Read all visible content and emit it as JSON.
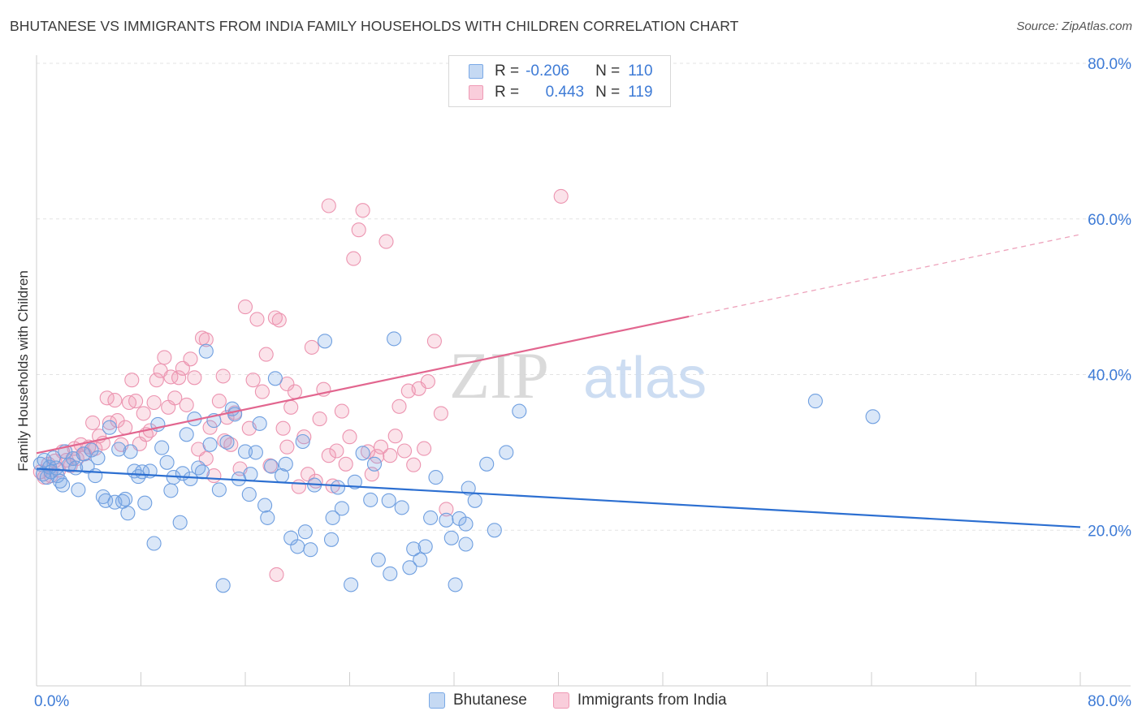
{
  "title": "BHUTANESE VS IMMIGRANTS FROM INDIA FAMILY HOUSEHOLDS WITH CHILDREN CORRELATION CHART",
  "source": "Source: ZipAtlas.com",
  "watermark": {
    "zip": "ZIP",
    "atlas": "atlas"
  },
  "legend": {
    "rows": [
      {
        "r_label": "R =",
        "r_value": "-0.206",
        "n_label": "N =",
        "n_value": "110",
        "color": "#7aa9e6"
      },
      {
        "r_label": "R =",
        "r_value": "0.443",
        "n_label": "N =",
        "n_value": "119",
        "color": "#ef9ab5"
      }
    ]
  },
  "bottom_legend": [
    {
      "label": "Bhutanese",
      "color": "#7aa9e6"
    },
    {
      "label": "Immigrants from India",
      "color": "#ef9ab5"
    }
  ],
  "chart_data": {
    "type": "scatter",
    "title": "BHUTANESE VS IMMIGRANTS FROM INDIA FAMILY HOUSEHOLDS WITH CHILDREN CORRELATION CHART",
    "xlabel": "",
    "ylabel": "Family Households with Children",
    "xlim": [
      0,
      80
    ],
    "ylim": [
      0,
      80
    ],
    "x_tick_labels": [
      {
        "value": 0,
        "label": "0.0%"
      },
      {
        "value": 80,
        "label": "80.0%"
      }
    ],
    "y_tick_labels": [
      {
        "value": 20,
        "label": "20.0%"
      },
      {
        "value": 40,
        "label": "40.0%"
      },
      {
        "value": 60,
        "label": "60.0%"
      },
      {
        "value": 80,
        "label": "80.0%"
      }
    ],
    "grid": true,
    "legend_position": "top-center",
    "series": [
      {
        "name": "Bhutanese",
        "color": "#7aa9e6",
        "trend": {
          "x": [
            0,
            80
          ],
          "y": [
            27.9,
            20.4
          ],
          "solid_to": 80
        },
        "points": [
          [
            0.3,
            28.5
          ],
          [
            0.5,
            27.2
          ],
          [
            0.6,
            29.0
          ],
          [
            0.8,
            26.8
          ],
          [
            1.0,
            28.1
          ],
          [
            1.1,
            27.5
          ],
          [
            1.3,
            29.3
          ],
          [
            1.5,
            28.0
          ],
          [
            1.6,
            27.0
          ],
          [
            1.8,
            26.3
          ],
          [
            2.0,
            25.8
          ],
          [
            2.2,
            30.1
          ],
          [
            2.5,
            28.4
          ],
          [
            2.8,
            29.2
          ],
          [
            3.0,
            28.0
          ],
          [
            3.2,
            25.2
          ],
          [
            3.6,
            29.8
          ],
          [
            3.9,
            28.2
          ],
          [
            4.2,
            30.3
          ],
          [
            4.5,
            27.0
          ],
          [
            4.7,
            29.3
          ],
          [
            5.1,
            24.3
          ],
          [
            5.3,
            23.8
          ],
          [
            5.6,
            33.2
          ],
          [
            6.0,
            23.6
          ],
          [
            6.3,
            30.4
          ],
          [
            6.6,
            23.7
          ],
          [
            6.8,
            24.0
          ],
          [
            7.0,
            22.2
          ],
          [
            7.2,
            30.1
          ],
          [
            7.5,
            27.6
          ],
          [
            7.8,
            26.9
          ],
          [
            8.1,
            27.5
          ],
          [
            8.3,
            23.5
          ],
          [
            8.7,
            27.6
          ],
          [
            9.0,
            18.3
          ],
          [
            9.3,
            33.6
          ],
          [
            9.6,
            30.6
          ],
          [
            10.0,
            28.7
          ],
          [
            10.3,
            25.1
          ],
          [
            10.5,
            26.8
          ],
          [
            11.0,
            21.0
          ],
          [
            11.2,
            27.3
          ],
          [
            11.5,
            32.3
          ],
          [
            11.8,
            26.6
          ],
          [
            12.1,
            34.3
          ],
          [
            12.4,
            28.0
          ],
          [
            12.7,
            27.5
          ],
          [
            13.0,
            43.0
          ],
          [
            13.3,
            31.0
          ],
          [
            13.6,
            34.1
          ],
          [
            14.0,
            25.2
          ],
          [
            14.3,
            12.9
          ],
          [
            14.6,
            31.3
          ],
          [
            15.0,
            35.6
          ],
          [
            15.2,
            34.9
          ],
          [
            15.5,
            26.6
          ],
          [
            16.0,
            30.1
          ],
          [
            16.3,
            24.6
          ],
          [
            16.4,
            27.2
          ],
          [
            16.8,
            30.0
          ],
          [
            17.1,
            33.7
          ],
          [
            17.5,
            23.2
          ],
          [
            17.7,
            21.6
          ],
          [
            18.0,
            28.2
          ],
          [
            18.3,
            39.5
          ],
          [
            18.8,
            27.0
          ],
          [
            19.1,
            28.5
          ],
          [
            19.5,
            19.0
          ],
          [
            20.0,
            17.9
          ],
          [
            20.4,
            31.4
          ],
          [
            20.6,
            19.8
          ],
          [
            21.0,
            17.5
          ],
          [
            21.3,
            25.8
          ],
          [
            22.1,
            44.3
          ],
          [
            22.6,
            18.8
          ],
          [
            22.7,
            21.6
          ],
          [
            23.1,
            25.5
          ],
          [
            23.4,
            22.8
          ],
          [
            24.1,
            13.0
          ],
          [
            24.4,
            26.2
          ],
          [
            25.0,
            29.9
          ],
          [
            25.6,
            23.9
          ],
          [
            25.9,
            28.5
          ],
          [
            26.2,
            16.2
          ],
          [
            27.0,
            23.8
          ],
          [
            27.1,
            14.4
          ],
          [
            27.4,
            44.6
          ],
          [
            28.0,
            22.9
          ],
          [
            28.6,
            15.2
          ],
          [
            28.9,
            17.6
          ],
          [
            29.4,
            16.2
          ],
          [
            29.8,
            17.9
          ],
          [
            30.2,
            21.6
          ],
          [
            30.6,
            26.8
          ],
          [
            31.4,
            21.3
          ],
          [
            31.8,
            19.0
          ],
          [
            32.1,
            13.0
          ],
          [
            32.4,
            21.5
          ],
          [
            32.9,
            20.8
          ],
          [
            32.9,
            18.2
          ],
          [
            33.1,
            25.4
          ],
          [
            33.6,
            23.8
          ],
          [
            34.5,
            28.5
          ],
          [
            35.1,
            20.0
          ],
          [
            36.0,
            30.0
          ],
          [
            37.0,
            35.3
          ],
          [
            59.7,
            36.6
          ],
          [
            64.1,
            34.6
          ]
        ]
      },
      {
        "name": "Immigrants from India",
        "color": "#ef9ab5",
        "trend": {
          "x": [
            0,
            80
          ],
          "y": [
            29.9,
            58.0
          ],
          "solid_to": 50
        },
        "points": [
          [
            0.3,
            27.5
          ],
          [
            0.6,
            26.8
          ],
          [
            0.9,
            28.5
          ],
          [
            1.1,
            27.0
          ],
          [
            1.4,
            28.9
          ],
          [
            1.7,
            27.7
          ],
          [
            2.0,
            30.1
          ],
          [
            2.3,
            29.0
          ],
          [
            2.6,
            28.3
          ],
          [
            2.9,
            30.5
          ],
          [
            3.1,
            29.2
          ],
          [
            3.4,
            31.0
          ],
          [
            3.7,
            29.8
          ],
          [
            4.0,
            30.7
          ],
          [
            4.3,
            33.8
          ],
          [
            4.5,
            30.5
          ],
          [
            4.8,
            32.1
          ],
          [
            5.1,
            31.2
          ],
          [
            5.4,
            37.0
          ],
          [
            5.6,
            33.8
          ],
          [
            6.0,
            36.7
          ],
          [
            6.2,
            34.1
          ],
          [
            6.5,
            31.0
          ],
          [
            6.8,
            33.2
          ],
          [
            7.1,
            36.4
          ],
          [
            7.3,
            39.3
          ],
          [
            7.6,
            36.6
          ],
          [
            7.9,
            31.1
          ],
          [
            8.2,
            35.0
          ],
          [
            8.4,
            32.3
          ],
          [
            8.7,
            32.8
          ],
          [
            9.0,
            36.4
          ],
          [
            9.2,
            39.3
          ],
          [
            9.5,
            40.5
          ],
          [
            9.8,
            42.2
          ],
          [
            10.1,
            35.8
          ],
          [
            10.3,
            39.7
          ],
          [
            10.6,
            37.0
          ],
          [
            10.9,
            39.6
          ],
          [
            11.2,
            40.8
          ],
          [
            11.5,
            36.1
          ],
          [
            11.8,
            42.0
          ],
          [
            12.1,
            39.6
          ],
          [
            12.4,
            30.4
          ],
          [
            12.7,
            44.7
          ],
          [
            13.0,
            44.5
          ],
          [
            13.3,
            33.2
          ],
          [
            13.6,
            27.0
          ],
          [
            14.0,
            36.6
          ],
          [
            14.3,
            39.8
          ],
          [
            14.6,
            34.5
          ],
          [
            14.9,
            31.0
          ],
          [
            15.2,
            35.1
          ],
          [
            15.6,
            27.9
          ],
          [
            16.0,
            48.7
          ],
          [
            16.3,
            33.1
          ],
          [
            16.6,
            39.3
          ],
          [
            16.9,
            47.1
          ],
          [
            17.3,
            37.8
          ],
          [
            17.6,
            42.6
          ],
          [
            17.9,
            28.3
          ],
          [
            18.3,
            47.3
          ],
          [
            18.6,
            47.0
          ],
          [
            18.9,
            33.1
          ],
          [
            19.2,
            38.8
          ],
          [
            19.5,
            35.8
          ],
          [
            19.8,
            37.8
          ],
          [
            20.1,
            25.6
          ],
          [
            20.5,
            32.0
          ],
          [
            20.8,
            27.2
          ],
          [
            21.1,
            43.5
          ],
          [
            21.4,
            26.3
          ],
          [
            21.7,
            34.3
          ],
          [
            22.0,
            38.1
          ],
          [
            22.4,
            29.6
          ],
          [
            22.7,
            25.7
          ],
          [
            23.0,
            30.2
          ],
          [
            23.4,
            35.3
          ],
          [
            23.7,
            28.5
          ],
          [
            24.0,
            32.0
          ],
          [
            24.3,
            54.9
          ],
          [
            24.7,
            58.6
          ],
          [
            25.0,
            61.1
          ],
          [
            25.4,
            30.1
          ],
          [
            25.7,
            27.2
          ],
          [
            26.1,
            29.5
          ],
          [
            26.4,
            30.7
          ],
          [
            26.8,
            57.1
          ],
          [
            27.1,
            29.6
          ],
          [
            27.5,
            32.1
          ],
          [
            27.8,
            35.9
          ],
          [
            28.2,
            30.2
          ],
          [
            28.5,
            37.9
          ],
          [
            28.9,
            28.4
          ],
          [
            29.3,
            38.2
          ],
          [
            29.7,
            30.5
          ],
          [
            30.0,
            39.1
          ],
          [
            30.5,
            44.3
          ],
          [
            31.0,
            35.0
          ],
          [
            31.4,
            22.7
          ],
          [
            40.2,
            62.9
          ],
          [
            22.4,
            61.7
          ],
          [
            18.4,
            14.3
          ],
          [
            19.2,
            30.7
          ],
          [
            13.0,
            29.2
          ],
          [
            14.4,
            31.5
          ]
        ]
      }
    ]
  }
}
